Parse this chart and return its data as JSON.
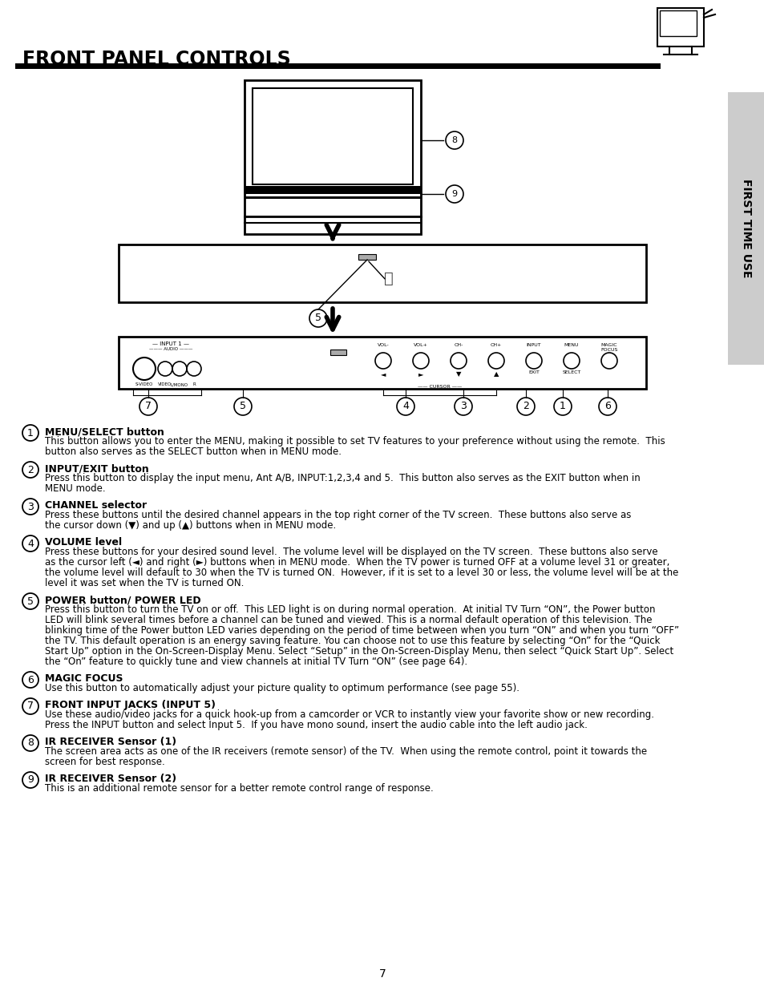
{
  "title": "FRONT PANEL CONTROLS",
  "sidebar_text": "FIRST TIME USE",
  "page_number": "7",
  "background_color": "#ffffff",
  "title_fontsize": 17,
  "sections": [
    {
      "number": "1",
      "heading": "MENU/SELECT button",
      "body": "This button allows you to enter the MENU, making it possible to set TV features to your preference without using the remote.  This\nbutton also serves as the SELECT button when in MENU mode."
    },
    {
      "number": "2",
      "heading": "INPUT/EXIT button",
      "body": "Press this button to display the input menu, Ant A/B, INPUT:1,2,3,4 and 5.  This button also serves as the EXIT button when in\nMENU mode."
    },
    {
      "number": "3",
      "heading": "CHANNEL selector",
      "body": "Press these buttons until the desired channel appears in the top right corner of the TV screen.  These buttons also serve as\nthe cursor down (▼) and up (▲) buttons when in MENU mode."
    },
    {
      "number": "4",
      "heading": "VOLUME level",
      "body": "Press these buttons for your desired sound level.  The volume level will be displayed on the TV screen.  These buttons also serve\nas the cursor left (◄) and right (►) buttons when in MENU mode.  When the TV power is turned OFF at a volume level 31 or greater,\nthe volume level will default to 30 when the TV is turned ON.  However, if it is set to a level 30 or less, the volume level will be at the\nlevel it was set when the TV is turned ON."
    },
    {
      "number": "5",
      "heading": "POWER button/ POWER LED",
      "body": "Press this button to turn the TV on or off.  This LED light is on during normal operation.  At initial TV Turn “ON”, the Power button\nLED will blink several times before a channel can be tuned and viewed. This is a normal default operation of this television. The\nblinking time of the Power button LED varies depending on the period of time between when you turn “ON” and when you turn “OFF”\nthe TV. This default operation is an energy saving feature. You can choose not to use this feature by selecting “On” for the “Quick\nStart Up” option in the On-Screen-Display Menu. Select “Setup” in the On-Screen-Display Menu, then select “Quick Start Up”. Select\nthe “On” feature to quickly tune and view channels at initial TV Turn “ON” (see page 64)."
    },
    {
      "number": "6",
      "heading": "MAGIC FOCUS",
      "body": "Use this button to automatically adjust your picture quality to optimum performance (see page 55)."
    },
    {
      "number": "7",
      "heading": "FRONT INPUT JACKS (INPUT 5)",
      "body": "Use these audio/video jacks for a quick hook-up from a camcorder or VCR to instantly view your favorite show or new recording.\nPress the INPUT button and select Input 5.  If you have mono sound, insert the audio cable into the left audio jack."
    },
    {
      "number": "8",
      "heading": "IR RECEIVER Sensor (1)",
      "body": "The screen area acts as one of the IR receivers (remote sensor) of the TV.  When using the remote control, point it towards the\nscreen for best response."
    },
    {
      "number": "9",
      "heading": "IR RECEIVER Sensor (2)",
      "body": "This is an additional remote sensor for a better remote control range of response."
    }
  ]
}
